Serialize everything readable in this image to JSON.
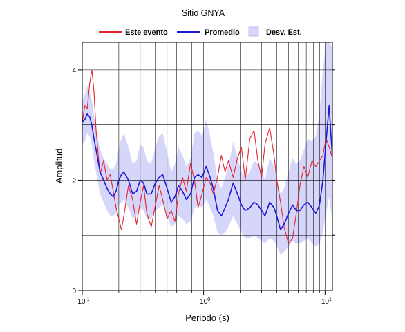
{
  "chart_data": {
    "type": "line",
    "title": "Sitio GNYA",
    "xlabel": "Periodo (s)",
    "ylabel": "Amplitud",
    "xscale": "log",
    "xlim": [
      0.1,
      11.5
    ],
    "ylim": [
      0,
      4.5
    ],
    "x_ticks": [
      {
        "value": 0.1,
        "base": "10",
        "exp": "-1"
      },
      {
        "value": 1,
        "base": "10",
        "exp": "0"
      },
      {
        "value": 10,
        "base": "10",
        "exp": "1"
      }
    ],
    "y_ticks": [
      0,
      2,
      4
    ],
    "y_tick_labels": [
      "0",
      "2",
      "4"
    ],
    "grid": true,
    "legend_position": "top",
    "legend": [
      {
        "label": "Este evento",
        "kind": "line",
        "color": "#e8212b"
      },
      {
        "label": "Promedio",
        "kind": "line",
        "color": "#1a1ad6"
      },
      {
        "label": "Desv. Est.",
        "kind": "band",
        "color": "#d6d6fb"
      }
    ],
    "series": [
      {
        "name": "Este evento",
        "color": "#e8212b",
        "x": [
          0.1,
          0.105,
          0.11,
          0.115,
          0.12,
          0.125,
          0.13,
          0.14,
          0.15,
          0.16,
          0.17,
          0.18,
          0.19,
          0.2,
          0.21,
          0.22,
          0.24,
          0.26,
          0.28,
          0.3,
          0.32,
          0.34,
          0.37,
          0.4,
          0.43,
          0.46,
          0.5,
          0.54,
          0.58,
          0.62,
          0.67,
          0.72,
          0.78,
          0.84,
          0.9,
          0.97,
          1.05,
          1.13,
          1.2,
          1.3,
          1.4,
          1.5,
          1.6,
          1.75,
          1.9,
          2.05,
          2.2,
          2.4,
          2.6,
          2.8,
          3.0,
          3.2,
          3.5,
          3.8,
          4.0,
          4.3,
          4.6,
          5.0,
          5.4,
          5.8,
          6.2,
          6.7,
          7.2,
          7.8,
          8.4,
          9.0,
          9.6,
          10.2,
          10.8,
          11.5
        ],
        "values": [
          3.05,
          3.35,
          3.3,
          3.75,
          4.0,
          3.6,
          2.9,
          2.1,
          2.35,
          2.0,
          2.1,
          1.8,
          1.5,
          1.3,
          1.1,
          1.35,
          1.9,
          1.65,
          1.2,
          1.6,
          1.9,
          1.4,
          1.15,
          1.55,
          1.9,
          1.65,
          1.3,
          1.45,
          1.25,
          1.75,
          2.05,
          1.8,
          2.3,
          2.0,
          1.5,
          1.75,
          2.05,
          1.95,
          1.75,
          2.05,
          2.45,
          2.15,
          2.35,
          2.05,
          2.4,
          2.6,
          2.0,
          2.75,
          2.9,
          2.35,
          2.05,
          2.65,
          2.95,
          2.45,
          2.0,
          1.6,
          1.15,
          0.85,
          0.95,
          1.4,
          1.9,
          2.25,
          2.05,
          2.35,
          2.25,
          2.35,
          2.45,
          2.75,
          2.6,
          2.4
        ]
      },
      {
        "name": "Promedio",
        "color": "#1a1ad6",
        "x": [
          0.1,
          0.105,
          0.11,
          0.115,
          0.12,
          0.125,
          0.13,
          0.14,
          0.15,
          0.16,
          0.17,
          0.18,
          0.19,
          0.2,
          0.21,
          0.22,
          0.24,
          0.26,
          0.28,
          0.3,
          0.32,
          0.34,
          0.37,
          0.4,
          0.43,
          0.46,
          0.5,
          0.54,
          0.58,
          0.62,
          0.67,
          0.72,
          0.78,
          0.84,
          0.9,
          0.97,
          1.05,
          1.13,
          1.2,
          1.3,
          1.4,
          1.5,
          1.6,
          1.75,
          1.9,
          2.05,
          2.2,
          2.4,
          2.6,
          2.8,
          3.0,
          3.2,
          3.5,
          3.8,
          4.0,
          4.3,
          4.6,
          5.0,
          5.4,
          5.8,
          6.2,
          6.7,
          7.2,
          7.8,
          8.4,
          9.0,
          9.6,
          10.2,
          10.8,
          11.5
        ],
        "values": [
          3.05,
          3.1,
          3.2,
          3.15,
          3.0,
          2.75,
          2.55,
          2.15,
          2.0,
          1.85,
          1.75,
          1.7,
          1.8,
          2.0,
          2.1,
          2.15,
          2.0,
          1.75,
          1.8,
          2.0,
          1.95,
          1.75,
          1.75,
          1.95,
          2.05,
          2.1,
          1.85,
          1.6,
          1.7,
          1.9,
          1.8,
          1.65,
          1.75,
          2.05,
          2.1,
          2.05,
          2.25,
          2.05,
          1.85,
          1.45,
          1.35,
          1.5,
          1.65,
          1.95,
          1.75,
          1.55,
          1.45,
          1.5,
          1.6,
          1.55,
          1.45,
          1.35,
          1.6,
          1.5,
          1.35,
          1.1,
          1.2,
          1.4,
          1.55,
          1.45,
          1.45,
          1.55,
          1.6,
          1.5,
          1.4,
          1.55,
          2.0,
          2.7,
          3.35,
          2.4
        ]
      }
    ],
    "band": {
      "name": "Desv. Est.",
      "color": "#d6d6fb",
      "x": [
        0.1,
        0.105,
        0.11,
        0.115,
        0.12,
        0.125,
        0.13,
        0.14,
        0.15,
        0.16,
        0.17,
        0.18,
        0.19,
        0.2,
        0.21,
        0.22,
        0.24,
        0.26,
        0.28,
        0.3,
        0.32,
        0.34,
        0.37,
        0.4,
        0.43,
        0.46,
        0.5,
        0.54,
        0.58,
        0.62,
        0.67,
        0.72,
        0.78,
        0.84,
        0.9,
        0.97,
        1.05,
        1.13,
        1.2,
        1.3,
        1.4,
        1.5,
        1.6,
        1.75,
        1.9,
        2.05,
        2.2,
        2.4,
        2.6,
        2.8,
        3.0,
        3.2,
        3.5,
        3.8,
        4.0,
        4.3,
        4.6,
        5.0,
        5.4,
        5.8,
        6.2,
        6.7,
        7.2,
        7.8,
        8.4,
        9.0,
        9.6,
        10.2,
        10.8,
        11.5
      ],
      "lower": [
        2.65,
        2.7,
        2.85,
        2.8,
        2.65,
        2.35,
        2.15,
        1.75,
        1.6,
        1.45,
        1.35,
        1.35,
        1.4,
        1.55,
        1.6,
        1.65,
        1.5,
        1.3,
        1.35,
        1.5,
        1.45,
        1.3,
        1.3,
        1.45,
        1.5,
        1.55,
        1.35,
        1.15,
        1.2,
        1.35,
        1.3,
        1.2,
        1.25,
        1.5,
        1.55,
        1.5,
        1.65,
        1.5,
        1.35,
        1.05,
        1.0,
        1.05,
        1.15,
        1.35,
        1.2,
        1.05,
        0.95,
        0.95,
        1.0,
        0.95,
        0.9,
        0.85,
        0.95,
        0.9,
        0.8,
        0.65,
        0.7,
        0.8,
        0.9,
        0.85,
        0.85,
        0.9,
        0.95,
        0.85,
        0.8,
        0.85,
        1.05,
        1.4,
        1.7,
        1.25
      ],
      "upper": [
        3.45,
        3.55,
        3.7,
        3.6,
        3.45,
        3.15,
        2.95,
        2.55,
        2.4,
        2.3,
        2.2,
        2.2,
        2.3,
        2.6,
        2.75,
        2.85,
        2.6,
        2.3,
        2.35,
        2.65,
        2.6,
        2.35,
        2.3,
        2.6,
        2.8,
        2.85,
        2.5,
        2.15,
        2.3,
        2.6,
        2.45,
        2.25,
        2.4,
        2.85,
        2.9,
        2.8,
        3.1,
        2.8,
        2.5,
        2.0,
        1.85,
        2.05,
        2.25,
        2.7,
        2.4,
        2.15,
        2.05,
        2.15,
        2.35,
        2.3,
        2.15,
        2.0,
        2.4,
        2.25,
        2.05,
        1.75,
        1.85,
        2.15,
        2.4,
        2.3,
        2.35,
        2.55,
        2.75,
        2.7,
        2.8,
        3.2,
        4.0,
        4.5,
        4.5,
        4.4
      ]
    }
  }
}
